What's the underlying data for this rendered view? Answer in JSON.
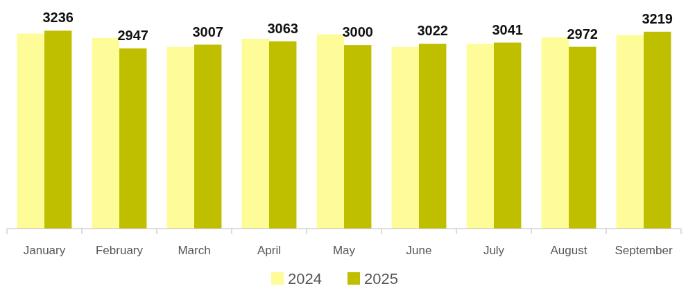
{
  "chart_data": {
    "type": "bar",
    "categories": [
      "January",
      "February",
      "March",
      "April",
      "May",
      "June",
      "July",
      "August",
      "September"
    ],
    "series": [
      {
        "name": "2024",
        "color": "#fdfc98",
        "values": [
          3188,
          3116,
          2971,
          3104,
          3176,
          2971,
          3020,
          3128,
          3164
        ]
      },
      {
        "name": "2025",
        "color": "#bfbf00",
        "values": [
          3236,
          2947,
          3007,
          3063,
          3000,
          3022,
          3041,
          2972,
          3219
        ],
        "value_labels": [
          "3236",
          "2947",
          "3007",
          "3063",
          "3000",
          "3022",
          "3041",
          "2972",
          "3219"
        ]
      }
    ],
    "legend": "bottom"
  }
}
